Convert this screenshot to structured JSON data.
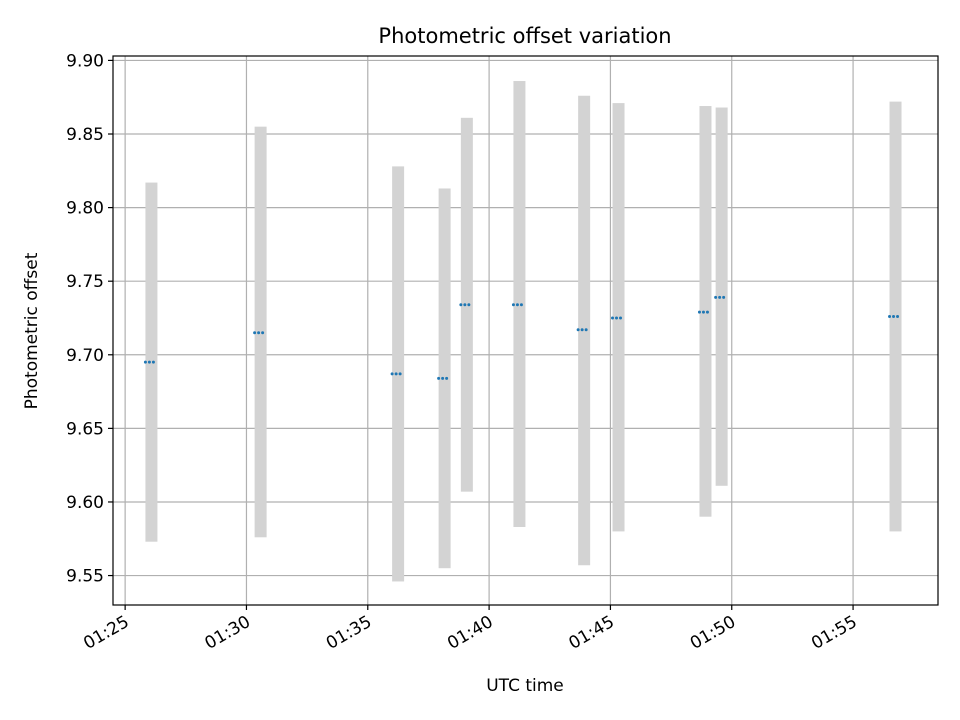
{
  "chart_data": {
    "type": "scatter",
    "title": "Photometric offset variation",
    "xlabel": "UTC time",
    "ylabel": "Photometric offset",
    "xlim": [
      "01:24:30",
      "01:58:30"
    ],
    "ylim": [
      9.53,
      9.903
    ],
    "x_ticks": [
      "01:25",
      "01:30",
      "01:35",
      "01:40",
      "01:45",
      "01:50",
      "01:55"
    ],
    "y_ticks": [
      "9.55",
      "9.60",
      "9.65",
      "9.70",
      "9.75",
      "9.80",
      "9.85",
      "9.90"
    ],
    "grid": true,
    "colors": {
      "points": "#1f77b4",
      "error_bars": "#d3d3d3",
      "grid": "#b0b0b0",
      "axes": "#000000"
    },
    "points": [
      {
        "t": "01:26:05",
        "y": 9.695,
        "lower": 9.573,
        "upper": 9.817
      },
      {
        "t": "01:30:35",
        "y": 9.715,
        "lower": 9.576,
        "upper": 9.855
      },
      {
        "t": "01:36:15",
        "y": 9.687,
        "lower": 9.546,
        "upper": 9.828
      },
      {
        "t": "01:38:10",
        "y": 9.684,
        "lower": 9.555,
        "upper": 9.813
      },
      {
        "t": "01:39:05",
        "y": 9.734,
        "lower": 9.607,
        "upper": 9.861
      },
      {
        "t": "01:41:15",
        "y": 9.734,
        "lower": 9.583,
        "upper": 9.886
      },
      {
        "t": "01:43:55",
        "y": 9.717,
        "lower": 9.557,
        "upper": 9.876
      },
      {
        "t": "01:45:20",
        "y": 9.725,
        "lower": 9.58,
        "upper": 9.871
      },
      {
        "t": "01:48:55",
        "y": 9.729,
        "lower": 9.59,
        "upper": 9.869
      },
      {
        "t": "01:49:35",
        "y": 9.739,
        "lower": 9.611,
        "upper": 9.868
      },
      {
        "t": "01:56:45",
        "y": 9.726,
        "lower": 9.58,
        "upper": 9.872
      }
    ]
  }
}
